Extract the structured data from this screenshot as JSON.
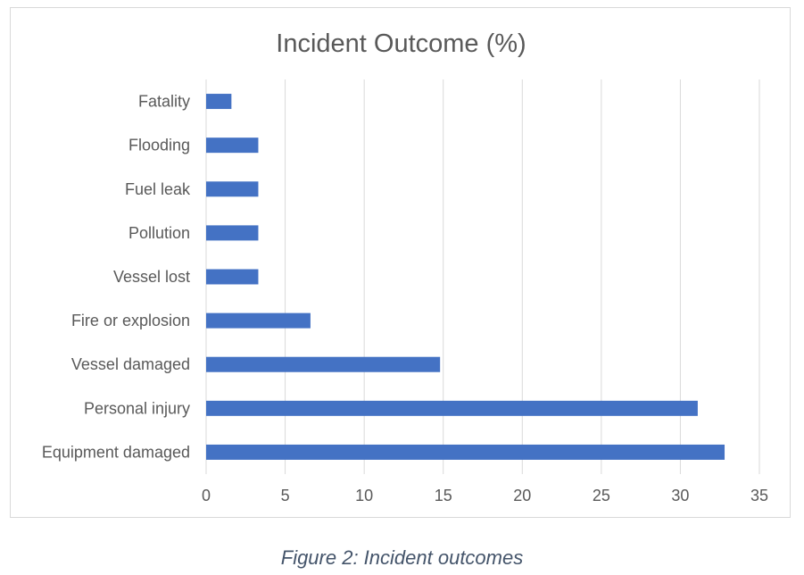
{
  "chart_data": {
    "type": "bar",
    "orientation": "horizontal",
    "title": "Incident Outcome (%)",
    "categories": [
      "Fatality",
      "Flooding",
      "Fuel leak",
      "Pollution",
      "Vessel lost",
      "Fire or explosion",
      "Vessel damaged",
      "Personal injury",
      "Equipment damaged"
    ],
    "values": [
      1.6,
      3.3,
      3.3,
      3.3,
      3.3,
      6.6,
      14.8,
      31.1,
      32.8
    ],
    "xlim": [
      0,
      35
    ],
    "xticks": [
      "0",
      "5",
      "10",
      "15",
      "20",
      "25",
      "30",
      "35"
    ],
    "grid": "vertical",
    "bar_color": "#4472c4",
    "xlabel": "",
    "ylabel": ""
  },
  "caption": "Figure 2: Incident outcomes"
}
